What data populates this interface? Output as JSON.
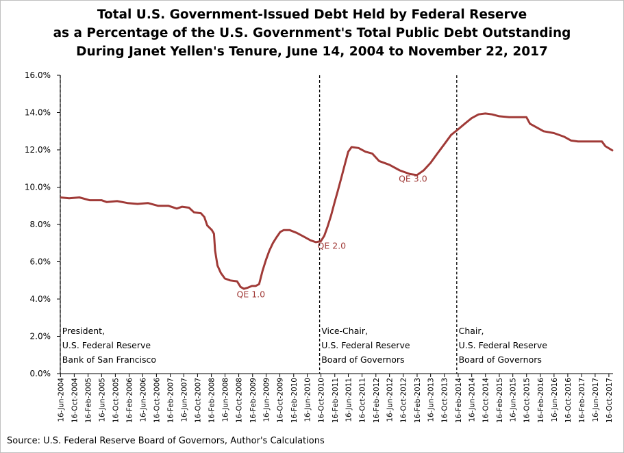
{
  "title_lines": [
    "Total U.S. Government-Issued Debt Held by Federal Reserve",
    "as a Percentage of the U.S. Government's Total Public Debt Outstanding",
    "During Janet Yellen's Tenure, June 14, 2004 to November 22, 2017"
  ],
  "source": "Source: U.S. Federal Reserve Board of Governors, Author's Calculations",
  "colors": {
    "series": "#a03a37",
    "axis": "#000000",
    "divider": "#000000"
  },
  "chart_data": {
    "type": "line",
    "title": "Total U.S. Government-Issued Debt Held by Federal Reserve as a Percentage of the U.S. Government's Total Public Debt Outstanding During Janet Yellen's Tenure, June 14, 2004 to November 22, 2017",
    "xlabel": "",
    "ylabel": "",
    "grid": false,
    "legend": "none",
    "xlim": [
      "2004-06-14",
      "2017-11-22"
    ],
    "ylim": [
      0,
      16
    ],
    "y_ticks": [
      0,
      2,
      4,
      6,
      8,
      10,
      12,
      14,
      16
    ],
    "y_tick_labels": [
      "0.0%",
      "2.0%",
      "4.0%",
      "6.0%",
      "8.0%",
      "10.0%",
      "12.0%",
      "14.0%",
      "16.0%"
    ],
    "x_tick_labels": [
      "16-Jun-2004",
      "16-Oct-2004",
      "16-Feb-2005",
      "16-Jun-2005",
      "16-Oct-2005",
      "16-Feb-2006",
      "16-Jun-2006",
      "16-Oct-2006",
      "16-Feb-2007",
      "16-Jun-2007",
      "16-Oct-2007",
      "16-Feb-2008",
      "16-Jun-2008",
      "16-Oct-2008",
      "16-Feb-2009",
      "16-Jun-2009",
      "16-Oct-2009",
      "16-Feb-2010",
      "16-Jun-2010",
      "16-Oct-2010",
      "16-Feb-2011",
      "16-Jun-2011",
      "16-Oct-2011",
      "16-Feb-2012",
      "16-Jun-2012",
      "16-Oct-2012",
      "16-Feb-2013",
      "16-Jun-2013",
      "16-Oct-2013",
      "16-Feb-2014",
      "16-Jun-2014",
      "16-Oct-2014",
      "16-Feb-2015",
      "16-Jun-2015",
      "16-Oct-2015",
      "16-Feb-2016",
      "16-Jun-2016",
      "16-Oct-2016",
      "16-Feb-2017",
      "16-Jun-2017",
      "16-Oct-2017"
    ],
    "series": [
      {
        "color": "#a03a37",
        "points": [
          [
            "2004-06-14",
            9.45
          ],
          [
            "2004-09-01",
            9.4
          ],
          [
            "2004-12-01",
            9.45
          ],
          [
            "2005-03-01",
            9.3
          ],
          [
            "2005-06-15",
            9.3
          ],
          [
            "2005-08-01",
            9.2
          ],
          [
            "2005-11-01",
            9.25
          ],
          [
            "2006-02-01",
            9.15
          ],
          [
            "2006-05-01",
            9.1
          ],
          [
            "2006-08-01",
            9.15
          ],
          [
            "2006-11-01",
            9.0
          ],
          [
            "2007-02-01",
            9.0
          ],
          [
            "2007-04-15",
            8.85
          ],
          [
            "2007-06-01",
            8.95
          ],
          [
            "2007-08-01",
            8.9
          ],
          [
            "2007-09-15",
            8.65
          ],
          [
            "2007-11-15",
            8.6
          ],
          [
            "2007-12-15",
            8.4
          ],
          [
            "2008-01-10",
            7.95
          ],
          [
            "2008-02-20",
            7.7
          ],
          [
            "2008-03-10",
            7.5
          ],
          [
            "2008-03-20",
            6.6
          ],
          [
            "2008-04-10",
            5.8
          ],
          [
            "2008-05-10",
            5.4
          ],
          [
            "2008-06-15",
            5.1
          ],
          [
            "2008-08-01",
            5.0
          ],
          [
            "2008-10-01",
            4.95
          ],
          [
            "2008-11-01",
            4.65
          ],
          [
            "2008-12-01",
            4.55
          ],
          [
            "2009-01-01",
            4.6
          ],
          [
            "2009-02-10",
            4.7
          ],
          [
            "2009-03-15",
            4.7
          ],
          [
            "2009-04-15",
            4.8
          ],
          [
            "2009-05-15",
            5.5
          ],
          [
            "2009-06-15",
            6.1
          ],
          [
            "2009-07-15",
            6.6
          ],
          [
            "2009-08-15",
            7.0
          ],
          [
            "2009-09-15",
            7.3
          ],
          [
            "2009-10-20",
            7.6
          ],
          [
            "2009-11-20",
            7.7
          ],
          [
            "2010-01-10",
            7.7
          ],
          [
            "2010-03-15",
            7.55
          ],
          [
            "2010-05-15",
            7.35
          ],
          [
            "2010-07-15",
            7.15
          ],
          [
            "2010-09-01",
            7.05
          ],
          [
            "2010-10-15",
            7.1
          ],
          [
            "2010-11-15",
            7.4
          ],
          [
            "2010-12-15",
            7.9
          ],
          [
            "2011-01-15",
            8.5
          ],
          [
            "2011-02-15",
            9.2
          ],
          [
            "2011-03-15",
            9.8
          ],
          [
            "2011-04-15",
            10.5
          ],
          [
            "2011-05-15",
            11.2
          ],
          [
            "2011-06-15",
            11.9
          ],
          [
            "2011-07-15",
            12.15
          ],
          [
            "2011-09-15",
            12.1
          ],
          [
            "2011-11-15",
            11.9
          ],
          [
            "2012-01-15",
            11.8
          ],
          [
            "2012-03-15",
            11.4
          ],
          [
            "2012-06-15",
            11.2
          ],
          [
            "2012-09-15",
            10.9
          ],
          [
            "2012-12-15",
            10.7
          ],
          [
            "2013-02-15",
            10.65
          ],
          [
            "2013-04-15",
            10.9
          ],
          [
            "2013-06-15",
            11.3
          ],
          [
            "2013-08-15",
            11.8
          ],
          [
            "2013-10-15",
            12.3
          ],
          [
            "2013-12-15",
            12.8
          ],
          [
            "2014-02-15",
            13.1
          ],
          [
            "2014-04-15",
            13.4
          ],
          [
            "2014-06-15",
            13.7
          ],
          [
            "2014-08-15",
            13.9
          ],
          [
            "2014-10-15",
            13.95
          ],
          [
            "2014-12-15",
            13.9
          ],
          [
            "2015-02-15",
            13.8
          ],
          [
            "2015-05-15",
            13.75
          ],
          [
            "2015-08-15",
            13.75
          ],
          [
            "2015-10-15",
            13.75
          ],
          [
            "2015-11-15",
            13.4
          ],
          [
            "2016-01-15",
            13.2
          ],
          [
            "2016-03-15",
            13.0
          ],
          [
            "2016-06-15",
            12.9
          ],
          [
            "2016-09-15",
            12.7
          ],
          [
            "2016-11-15",
            12.5
          ],
          [
            "2017-01-15",
            12.45
          ],
          [
            "2017-03-15",
            12.45
          ],
          [
            "2017-06-15",
            12.45
          ],
          [
            "2017-08-15",
            12.45
          ],
          [
            "2017-09-15",
            12.2
          ],
          [
            "2017-11-22",
            11.95
          ]
        ]
      }
    ],
    "dividers": [
      "2004-06-14",
      "2010-10-04",
      "2014-02-03"
    ],
    "annotations": {
      "qe": [
        {
          "label": "QE 1.0",
          "x": "2009-02-01",
          "y": 4.1
        },
        {
          "label": "QE 2.0",
          "x": "2011-01-20",
          "y": 6.7
        },
        {
          "label": "QE 3.0",
          "x": "2013-01-10",
          "y": 10.3
        }
      ],
      "roles": [
        {
          "lines": [
            "President,",
            "U.S. Federal Reserve",
            "Bank of San Francisco"
          ],
          "x": "2004-07-01"
        },
        {
          "lines": [
            "Vice-Chair,",
            "U.S. Federal Reserve",
            "Board of Governors"
          ],
          "x": "2010-10-20"
        },
        {
          "lines": [
            "Chair,",
            "U.S. Federal Reserve",
            "Board of Governors"
          ],
          "x": "2014-02-20"
        }
      ]
    }
  }
}
